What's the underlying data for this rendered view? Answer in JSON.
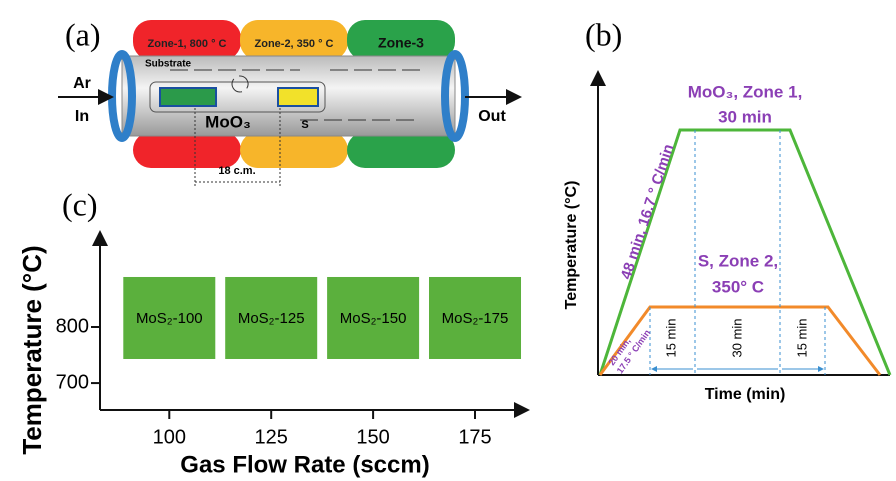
{
  "panel_a": {
    "label": "(a)",
    "zones": [
      "Zone-1, 800 ° C",
      "Zone-2, 350 ° C",
      "Zone-3"
    ],
    "gas": "Ar",
    "inlet": "In",
    "outlet": "Out",
    "substrate": "Substrate",
    "precursor_1": "MoO₃",
    "precursor_2": "S",
    "distance": "18 c.m."
  },
  "panel_b": {
    "label": "(b)",
    "y_label": "Temperature (°C)",
    "x_label": "Time (min)",
    "zone_1": [
      "MoO₃, Zone 1,",
      "30 min"
    ],
    "zone_2": [
      "S, Zone 2,",
      "350° C"
    ],
    "ramp_1": "48 min, 16.7 ° C/min",
    "ramp_2": [
      "20 min,",
      "17.5 ° C/min"
    ],
    "durations": [
      "15 min",
      "30 min",
      "15 min"
    ]
  },
  "chart_data": {
    "type": "tile",
    "panel_label": "(c)",
    "x_label": "Gas Flow Rate (sccm)",
    "y_label": "Temperature (°C)",
    "x": [
      100,
      125,
      150,
      175
    ],
    "values": [
      800,
      800,
      800,
      800
    ],
    "point_labels": [
      "MoS₂-100",
      "MoS₂-125",
      "MoS₂-150",
      "MoS₂-175"
    ],
    "color": "#5bb03d",
    "xlim": [
      83,
      188
    ],
    "ylim": [
      652,
      964
    ],
    "xticks": [
      100,
      125,
      150,
      175
    ],
    "yticks": [
      700,
      800
    ]
  }
}
